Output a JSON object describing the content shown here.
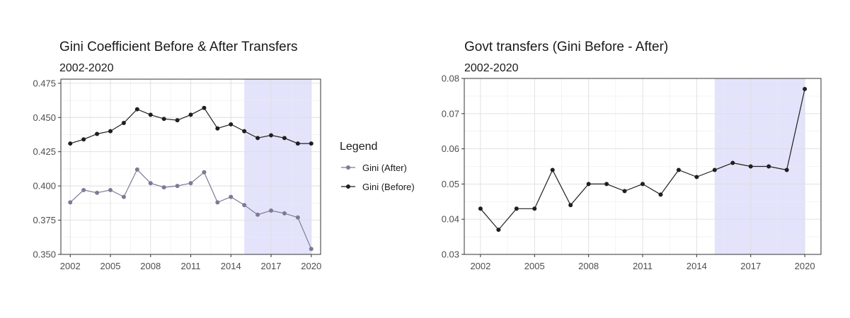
{
  "chart_data": [
    {
      "type": "line",
      "title": "Gini Coefficient Before & After Transfers",
      "subtitle": "2002-2020",
      "xlabel": "",
      "ylabel": "",
      "xlim": [
        2001.3,
        2020.7
      ],
      "ylim": [
        0.35,
        0.478
      ],
      "xticks": [
        2002,
        2005,
        2008,
        2011,
        2014,
        2017,
        2020
      ],
      "yticks": [
        "0.350",
        "0.375",
        "0.400",
        "0.425",
        "0.450",
        "0.475"
      ],
      "grid": true,
      "shaded_region": [
        2015,
        2020
      ],
      "shade_color": "#e3e3fb",
      "x": [
        2002,
        2003,
        2004,
        2005,
        2006,
        2007,
        2008,
        2009,
        2010,
        2011,
        2012,
        2013,
        2014,
        2015,
        2016,
        2017,
        2018,
        2019,
        2020
      ],
      "series": [
        {
          "name": "Gini (After)",
          "color": "#7b7b95",
          "values": [
            0.388,
            0.397,
            0.395,
            0.397,
            0.392,
            0.412,
            0.402,
            0.399,
            0.4,
            0.402,
            0.41,
            0.388,
            0.392,
            0.386,
            0.379,
            0.382,
            0.38,
            0.377,
            0.354
          ]
        },
        {
          "name": "Gini (Before)",
          "color": "#1f1f1f",
          "values": [
            0.431,
            0.434,
            0.438,
            0.44,
            0.446,
            0.456,
            0.452,
            0.449,
            0.448,
            0.452,
            0.457,
            0.442,
            0.445,
            0.44,
            0.435,
            0.437,
            0.435,
            0.431,
            0.431
          ]
        }
      ],
      "legend": {
        "title": "Legend",
        "placement": "right"
      }
    },
    {
      "type": "line",
      "title": "Govt transfers (Gini Before - After)",
      "subtitle": "2002-2020",
      "xlabel": "",
      "ylabel": "",
      "xlim": [
        2001.1,
        2020.9
      ],
      "ylim": [
        0.03,
        0.08
      ],
      "xticks": [
        2002,
        2005,
        2008,
        2011,
        2014,
        2017,
        2020
      ],
      "yticks": [
        "0.03",
        "0.04",
        "0.05",
        "0.06",
        "0.07",
        "0.08"
      ],
      "grid": true,
      "shaded_region": [
        2015,
        2020
      ],
      "shade_color": "#e3e3fb",
      "x": [
        2002,
        2003,
        2004,
        2005,
        2006,
        2007,
        2008,
        2009,
        2010,
        2011,
        2012,
        2013,
        2014,
        2015,
        2016,
        2017,
        2018,
        2019,
        2020
      ],
      "series": [
        {
          "name": "",
          "color": "#1f1f1f",
          "values": [
            0.043,
            0.037,
            0.043,
            0.043,
            0.054,
            0.044,
            0.05,
            0.05,
            0.048,
            0.05,
            0.047,
            0.054,
            0.052,
            0.054,
            0.056,
            0.055,
            0.055,
            0.054,
            0.077
          ]
        }
      ]
    }
  ]
}
